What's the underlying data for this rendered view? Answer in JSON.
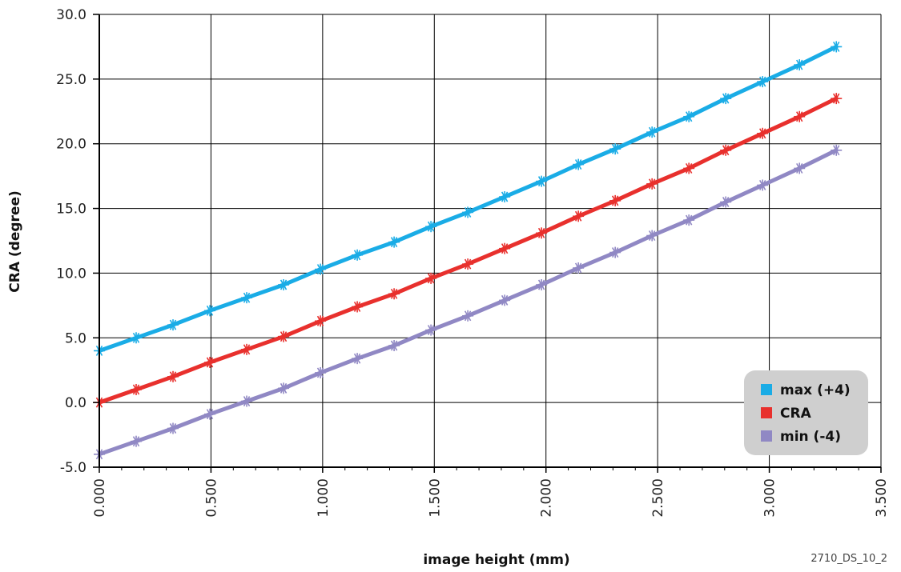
{
  "chart_data": {
    "type": "line",
    "xlabel": "image height (mm)",
    "ylabel": "CRA (degree)",
    "xlim": [
      0,
      3.5
    ],
    "ylim": [
      -5,
      30
    ],
    "x_ticks": [
      "0.000",
      "0.500",
      "1.000",
      "1.500",
      "2.000",
      "2.500",
      "3.000",
      "3.500"
    ],
    "y_ticks": [
      "-5.0",
      "0.0",
      "5.0",
      "10.0",
      "15.0",
      "20.0",
      "25.0",
      "30.0"
    ],
    "grid": true,
    "legend_position": "bottom-right",
    "note": "2710_DS_10_2",
    "x": [
      0,
      0.165,
      0.33,
      0.495,
      0.66,
      0.825,
      0.99,
      1.155,
      1.32,
      1.485,
      1.65,
      1.815,
      1.98,
      2.145,
      2.31,
      2.475,
      2.64,
      2.805,
      2.97,
      3.135,
      3.3
    ],
    "series": [
      {
        "name": "max (+4)",
        "color": "#1aace6",
        "values": [
          4.0,
          5.0,
          6.0,
          7.1,
          8.1,
          9.1,
          10.3,
          11.4,
          12.4,
          13.6,
          14.7,
          15.9,
          17.1,
          18.4,
          19.6,
          20.9,
          22.1,
          23.5,
          24.8,
          26.1,
          27.5
        ]
      },
      {
        "name": "CRA",
        "color": "#e8302d",
        "values": [
          0.0,
          1.0,
          2.0,
          3.1,
          4.1,
          5.1,
          6.3,
          7.4,
          8.4,
          9.6,
          10.7,
          11.9,
          13.1,
          14.4,
          15.6,
          16.9,
          18.1,
          19.5,
          20.8,
          22.1,
          23.5
        ]
      },
      {
        "name": "min (-4)",
        "color": "#9088c4",
        "values": [
          -4.0,
          -3.0,
          -2.0,
          -0.9,
          0.1,
          1.1,
          2.3,
          3.4,
          4.4,
          5.6,
          6.7,
          7.9,
          9.1,
          10.4,
          11.6,
          12.9,
          14.1,
          15.5,
          16.8,
          18.1,
          19.5
        ]
      }
    ]
  }
}
